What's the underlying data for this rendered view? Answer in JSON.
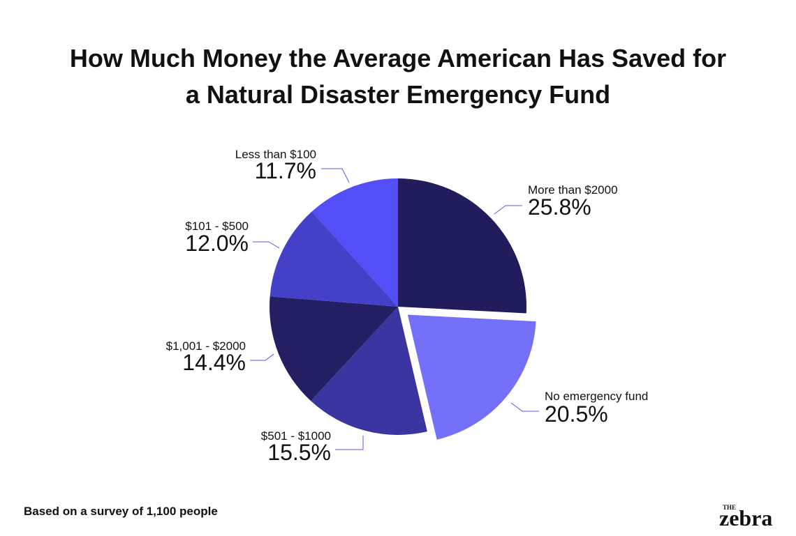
{
  "chart_data": {
    "type": "pie",
    "title": [
      "How Much Money the Average American Has Saved for",
      "a Natural Disaster Emergency Fund"
    ],
    "categories": [
      "More than $2000",
      "No emergency fund",
      "$501 - $1000",
      "$1,001 - $2000",
      "$101 - $500",
      "Less than $100"
    ],
    "values": [
      25.8,
      20.5,
      15.5,
      14.4,
      12.0,
      11.7
    ],
    "value_labels": [
      "25.8%",
      "20.5%",
      "15.5%",
      "14.4%",
      "12.0%",
      "11.7%"
    ],
    "colors": [
      "#211c5c",
      "#7570fa",
      "#3a35a0",
      "#241e63",
      "#4440c8",
      "#544ef9"
    ],
    "note": "Based on a survey of 1,100 people",
    "logo_top": "THE",
    "logo": "zebra"
  }
}
